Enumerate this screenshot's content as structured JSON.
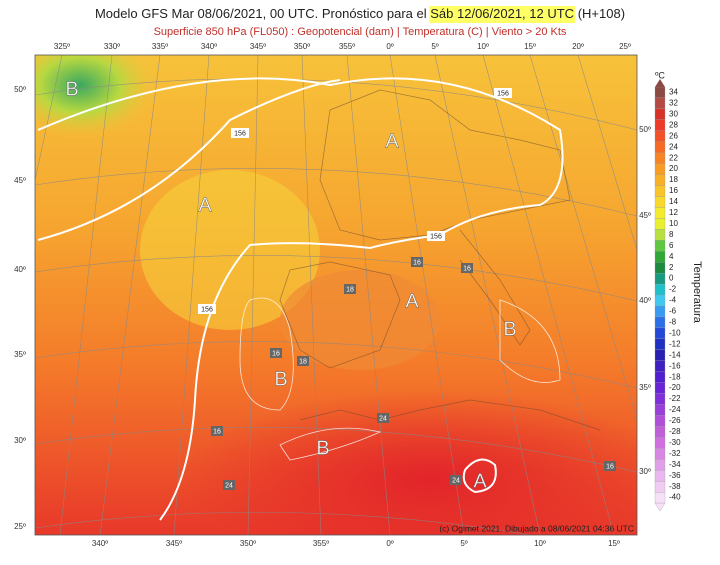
{
  "header": {
    "title_prefix": "Modelo GFS Mar 08/06/2021, 00 UTC. Pronóstico para el ",
    "title_highlight": "Sáb 12/06/2021, 12 UTC",
    "title_suffix": " (H+108)",
    "subtitle": "Superficie 850 hPa (FL050) : Geopotencial (dam) | Temperatura (C) | Viento > 20 Kts"
  },
  "map": {
    "top_longitudes": [
      "325º",
      "330º",
      "335º",
      "340º",
      "345º",
      "350º",
      "355º",
      "0º",
      "5º",
      "10º",
      "15º",
      "20º",
      "25º"
    ],
    "bottom_longitudes": [
      "340º",
      "345º",
      "350º",
      "355º",
      "0º",
      "5º",
      "10º",
      "15º"
    ],
    "left_latitudes": [
      "50º",
      "45º",
      "40º",
      "35º",
      "30º",
      "25º"
    ],
    "right_latitudes": [
      "50º",
      "45º",
      "40º",
      "35º",
      "30º"
    ],
    "pressure_centers": [
      "B",
      "A",
      "A",
      "A",
      "B",
      "B",
      "B",
      "A"
    ],
    "contour_labels": [
      156,
      156,
      156,
      156,
      16,
      16,
      16,
      18,
      18,
      16,
      24,
      24,
      24,
      16
    ],
    "credit": "(c) Ogimet 2021. Dibujado a 08/06/2021 04:36 UTC"
  },
  "colorbar": {
    "unit": "ºC",
    "label": "Temperatura",
    "ticks": [
      34,
      32,
      30,
      28,
      26,
      24,
      22,
      20,
      18,
      16,
      14,
      12,
      10,
      8,
      6,
      4,
      2,
      0,
      -2,
      -4,
      -6,
      -8,
      -10,
      -12,
      -14,
      -16,
      -18,
      -20,
      -22,
      -24,
      -26,
      -28,
      -30,
      -32,
      -34,
      -36,
      -38,
      -40
    ],
    "colors": [
      "#8c4a44",
      "#b54a44",
      "#d83228",
      "#ee3a28",
      "#f25226",
      "#f56a24",
      "#f78424",
      "#f89c26",
      "#f8b028",
      "#f8c42a",
      "#f8d82c",
      "#f4ea2e",
      "#e8f030",
      "#b8e040",
      "#60c840",
      "#30a838",
      "#1c8a40",
      "#189a80",
      "#20c0c8",
      "#40c8f0",
      "#3a9cf0",
      "#2c70e8",
      "#2448d8",
      "#2030c0",
      "#2820b0",
      "#4020c0",
      "#5020d0",
      "#6a24d8",
      "#8030d8",
      "#9840d8",
      "#b050d8",
      "#c060d8",
      "#d070e0",
      "#d888e4",
      "#e0a0e8",
      "#e8b8ee",
      "#f0ccf2",
      "#f6e0f8"
    ]
  }
}
